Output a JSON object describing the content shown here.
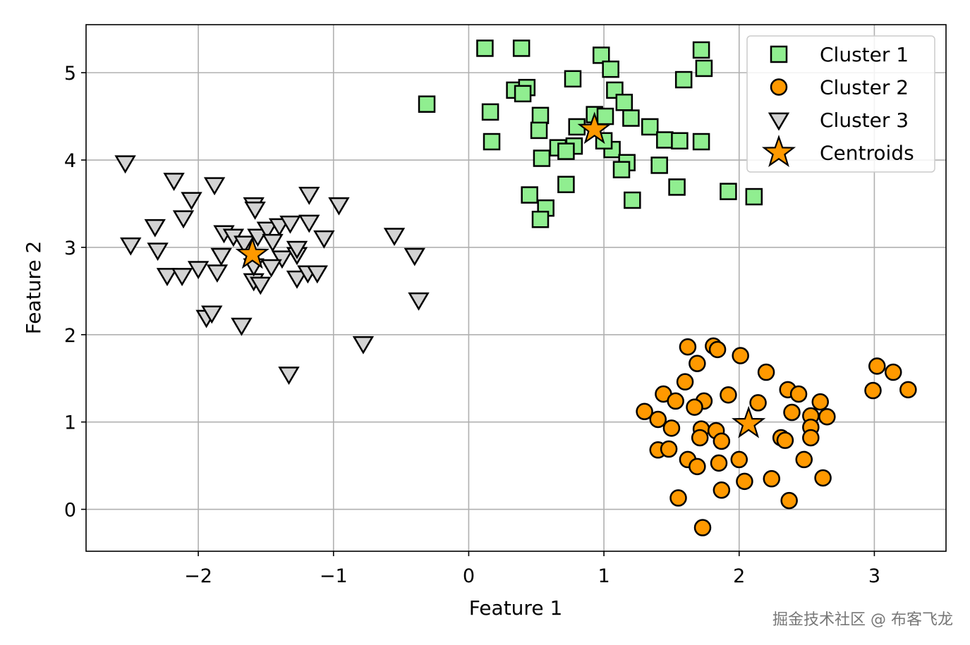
{
  "chart_data": {
    "type": "scatter",
    "title": "",
    "xlabel": "Feature 1",
    "ylabel": "Feature 2",
    "xlim": [
      -2.83,
      3.53
    ],
    "ylim": [
      -0.48,
      5.55
    ],
    "xticks": [
      -2,
      -1,
      0,
      1,
      2,
      3
    ],
    "xtick_labels": [
      "−2",
      "−1",
      "0",
      "1",
      "2",
      "3"
    ],
    "yticks": [
      0,
      1,
      2,
      3,
      4,
      5
    ],
    "ytick_labels": [
      "0",
      "1",
      "2",
      "3",
      "4",
      "5"
    ],
    "grid": true,
    "legend_placement": "top-right",
    "series": [
      {
        "name": "Cluster 1",
        "marker": "square",
        "color": "#90EE90",
        "points": [
          [
            0.12,
            5.28
          ],
          [
            0.39,
            5.28
          ],
          [
            0.98,
            5.2
          ],
          [
            1.72,
            5.26
          ],
          [
            1.05,
            5.04
          ],
          [
            1.74,
            5.05
          ],
          [
            -0.31,
            4.64
          ],
          [
            0.77,
            4.93
          ],
          [
            1.59,
            4.92
          ],
          [
            0.16,
            4.55
          ],
          [
            0.34,
            4.8
          ],
          [
            0.43,
            4.83
          ],
          [
            0.4,
            4.76
          ],
          [
            1.08,
            4.8
          ],
          [
            1.15,
            4.66
          ],
          [
            0.53,
            4.51
          ],
          [
            0.52,
            4.34
          ],
          [
            0.93,
            4.52
          ],
          [
            1.01,
            4.5
          ],
          [
            0.8,
            4.38
          ],
          [
            1.2,
            4.48
          ],
          [
            1.34,
            4.38
          ],
          [
            1.45,
            4.23
          ],
          [
            1.56,
            4.22
          ],
          [
            1.72,
            4.21
          ],
          [
            0.17,
            4.21
          ],
          [
            0.54,
            4.02
          ],
          [
            0.66,
            4.14
          ],
          [
            0.78,
            4.16
          ],
          [
            0.72,
            4.1
          ],
          [
            1.06,
            4.12
          ],
          [
            1.17,
            3.97
          ],
          [
            1.13,
            3.89
          ],
          [
            1.41,
            3.94
          ],
          [
            0.45,
            3.6
          ],
          [
            0.57,
            3.45
          ],
          [
            0.53,
            3.32
          ],
          [
            0.72,
            3.72
          ],
          [
            1.21,
            3.54
          ],
          [
            1.54,
            3.69
          ],
          [
            1.92,
            3.64
          ],
          [
            2.11,
            3.58
          ],
          [
            1.0,
            4.22
          ]
        ]
      },
      {
        "name": "Cluster 2",
        "marker": "circle",
        "color": "#FF9900",
        "points": [
          [
            1.62,
            1.86
          ],
          [
            1.81,
            1.87
          ],
          [
            1.84,
            1.83
          ],
          [
            2.01,
            1.76
          ],
          [
            1.69,
            1.67
          ],
          [
            2.2,
            1.57
          ],
          [
            1.6,
            1.46
          ],
          [
            1.44,
            1.32
          ],
          [
            1.53,
            1.24
          ],
          [
            1.74,
            1.24
          ],
          [
            1.67,
            1.17
          ],
          [
            1.92,
            1.31
          ],
          [
            2.14,
            1.22
          ],
          [
            2.36,
            1.37
          ],
          [
            2.44,
            1.32
          ],
          [
            2.6,
            1.23
          ],
          [
            2.39,
            1.11
          ],
          [
            2.53,
            1.07
          ],
          [
            2.65,
            1.06
          ],
          [
            1.3,
            1.12
          ],
          [
            1.4,
            1.03
          ],
          [
            1.5,
            0.93
          ],
          [
            1.72,
            0.92
          ],
          [
            1.83,
            0.9
          ],
          [
            1.71,
            0.82
          ],
          [
            1.87,
            0.78
          ],
          [
            2.31,
            0.82
          ],
          [
            2.34,
            0.79
          ],
          [
            2.53,
            0.94
          ],
          [
            2.53,
            0.82
          ],
          [
            1.4,
            0.68
          ],
          [
            1.48,
            0.69
          ],
          [
            1.62,
            0.57
          ],
          [
            1.69,
            0.49
          ],
          [
            1.85,
            0.53
          ],
          [
            2.0,
            0.57
          ],
          [
            2.48,
            0.57
          ],
          [
            2.04,
            0.32
          ],
          [
            2.24,
            0.35
          ],
          [
            2.62,
            0.36
          ],
          [
            1.87,
            0.22
          ],
          [
            1.55,
            0.13
          ],
          [
            2.37,
            0.1
          ],
          [
            1.73,
            -0.21
          ],
          [
            3.02,
            1.64
          ],
          [
            3.14,
            1.57
          ],
          [
            2.99,
            1.36
          ],
          [
            3.25,
            1.37
          ]
        ]
      },
      {
        "name": "Cluster 3",
        "marker": "triangle_down",
        "color": "#D3D3D3",
        "points": [
          [
            -2.54,
            3.97
          ],
          [
            -2.5,
            3.03
          ],
          [
            -2.32,
            3.24
          ],
          [
            -2.3,
            2.97
          ],
          [
            -2.18,
            3.77
          ],
          [
            -2.05,
            3.55
          ],
          [
            -2.11,
            3.34
          ],
          [
            -2.23,
            2.68
          ],
          [
            -2.12,
            2.68
          ],
          [
            -2.0,
            2.76
          ],
          [
            -1.88,
            3.72
          ],
          [
            -1.86,
            2.72
          ],
          [
            -1.83,
            2.91
          ],
          [
            -1.81,
            3.17
          ],
          [
            -1.74,
            3.13
          ],
          [
            -1.59,
            3.49
          ],
          [
            -1.58,
            3.44
          ],
          [
            -1.66,
            3.05
          ],
          [
            -1.56,
            3.13
          ],
          [
            -1.49,
            3.21
          ],
          [
            -1.4,
            3.25
          ],
          [
            -1.32,
            3.28
          ],
          [
            -1.18,
            3.61
          ],
          [
            -1.18,
            3.29
          ],
          [
            -1.07,
            3.11
          ],
          [
            -0.96,
            3.49
          ],
          [
            -1.45,
            3.07
          ],
          [
            -1.38,
            2.88
          ],
          [
            -1.46,
            2.78
          ],
          [
            -1.27,
            2.92
          ],
          [
            -1.27,
            2.99
          ],
          [
            -1.27,
            2.65
          ],
          [
            -1.19,
            2.71
          ],
          [
            -1.12,
            2.71
          ],
          [
            -1.59,
            2.62
          ],
          [
            -1.54,
            2.58
          ],
          [
            -1.59,
            2.79
          ],
          [
            -1.94,
            2.2
          ],
          [
            -1.9,
            2.25
          ],
          [
            -1.68,
            2.11
          ],
          [
            -0.55,
            3.14
          ],
          [
            -0.4,
            2.91
          ],
          [
            -0.37,
            2.4
          ],
          [
            -0.78,
            1.9
          ],
          [
            -1.33,
            1.55
          ]
        ]
      },
      {
        "name": "Centroids",
        "marker": "star",
        "color": "#FF9900",
        "points": [
          [
            0.93,
            4.35
          ],
          [
            2.07,
            0.98
          ],
          [
            -1.6,
            2.92
          ]
        ]
      }
    ]
  },
  "watermark": "掘金技术社区 @ 布客飞龙"
}
